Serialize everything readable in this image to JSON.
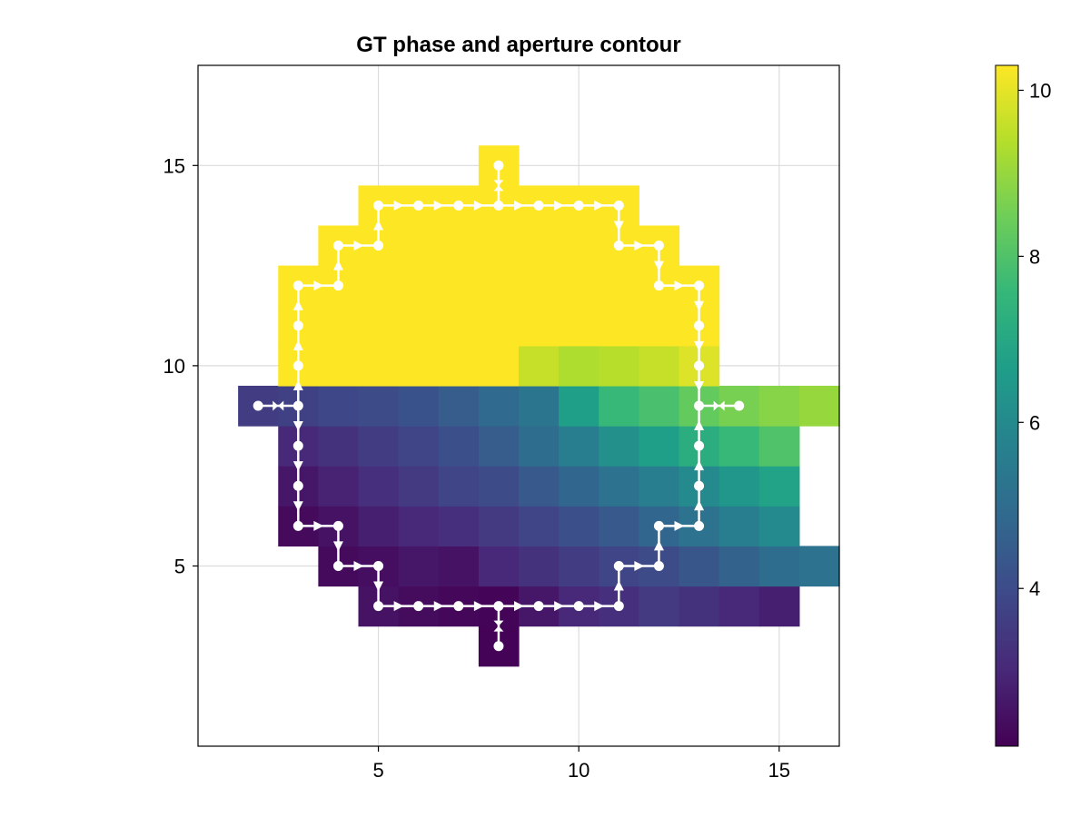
{
  "chart_data": {
    "type": "heatmap",
    "title": "GT phase and aperture contour",
    "xlabel": "",
    "ylabel": "",
    "xlim": [
      0.5,
      16.5
    ],
    "ylim": [
      0.5,
      17.5
    ],
    "xticks": [
      5,
      10,
      15
    ],
    "yticks": [
      5,
      10,
      15
    ],
    "grid": true,
    "colormap": "viridis",
    "colorbar": {
      "range": [
        2.1,
        10.3
      ],
      "ticks": [
        4,
        6,
        8,
        10
      ],
      "placement": "right"
    },
    "cells_by_row": [
      {
        "y": 3,
        "x_start": 8,
        "values": [
          2.15
        ]
      },
      {
        "y": 4,
        "x_start": 5,
        "values": [
          2.5,
          2.35,
          2.25,
          2.2,
          2.6,
          3.0,
          3.2,
          3.5,
          3.3,
          3.0,
          2.8
        ]
      },
      {
        "y": 5,
        "x_start": 4,
        "values": [
          2.3,
          2.4,
          2.6,
          2.5,
          3.0,
          3.3,
          3.6,
          3.8,
          4.0,
          4.3,
          4.7,
          5.0,
          5.2
        ]
      },
      {
        "y": 6,
        "x_start": 3,
        "values": [
          2.3,
          2.5,
          2.8,
          3.0,
          3.2,
          3.5,
          3.8,
          4.1,
          4.4,
          4.8,
          5.2,
          5.6,
          6.0
        ]
      },
      {
        "y": 7,
        "x_start": 3,
        "values": [
          2.6,
          2.9,
          3.2,
          3.5,
          3.8,
          4.0,
          4.4,
          4.8,
          5.2,
          5.6,
          6.0,
          6.4,
          6.8
        ]
      },
      {
        "y": 8,
        "x_start": 3,
        "values": [
          3.0,
          3.3,
          3.6,
          3.8,
          4.1,
          4.5,
          5.0,
          5.6,
          6.2,
          6.7,
          7.2,
          7.6,
          8.0
        ]
      },
      {
        "y": 9,
        "x_start": 2,
        "values": [
          3.6,
          3.7,
          3.9,
          4.0,
          4.2,
          4.5,
          4.9,
          5.3,
          6.7,
          7.6,
          7.9,
          8.3,
          8.6,
          8.8,
          9.0
        ]
      },
      {
        "y": 10,
        "x_start": 3,
        "values": [
          10.3,
          10.3,
          10.3,
          10.3,
          10.3,
          10.3,
          9.6,
          9.3,
          9.4,
          9.6,
          9.9
        ]
      },
      {
        "y": 11,
        "x_start": 3,
        "values": [
          10.3,
          10.3,
          10.3,
          10.3,
          10.3,
          10.3,
          10.3,
          10.3,
          10.3,
          10.3,
          10.3
        ]
      },
      {
        "y": 12,
        "x_start": 3,
        "values": [
          10.3,
          10.3,
          10.3,
          10.3,
          10.3,
          10.3,
          10.3,
          10.3,
          10.3,
          10.3,
          10.3
        ]
      },
      {
        "y": 13,
        "x_start": 4,
        "values": [
          10.3,
          10.3,
          10.3,
          10.3,
          10.3,
          10.3,
          10.3,
          10.3,
          10.3
        ]
      },
      {
        "y": 14,
        "x_start": 5,
        "values": [
          10.3,
          10.3,
          10.3,
          10.3,
          10.3,
          10.3,
          10.3
        ]
      },
      {
        "y": 15,
        "x_start": 8,
        "values": [
          10.3
        ]
      }
    ],
    "contour_upper": [
      [
        3,
        9
      ],
      [
        3,
        10
      ],
      [
        3,
        11
      ],
      [
        3,
        12
      ],
      [
        4,
        12
      ],
      [
        4,
        13
      ],
      [
        5,
        13
      ],
      [
        5,
        14
      ],
      [
        6,
        14
      ],
      [
        7,
        14
      ],
      [
        8,
        14
      ],
      [
        9,
        14
      ],
      [
        10,
        14
      ],
      [
        11,
        14
      ],
      [
        11,
        13
      ],
      [
        12,
        13
      ],
      [
        12,
        12
      ],
      [
        13,
        12
      ],
      [
        13,
        11
      ],
      [
        13,
        10
      ],
      [
        13,
        9
      ]
    ],
    "contour_lower": [
      [
        3,
        9
      ],
      [
        3,
        8
      ],
      [
        3,
        7
      ],
      [
        3,
        6
      ],
      [
        4,
        6
      ],
      [
        4,
        5
      ],
      [
        5,
        5
      ],
      [
        5,
        4
      ],
      [
        6,
        4
      ],
      [
        7,
        4
      ],
      [
        8,
        4
      ],
      [
        9,
        4
      ],
      [
        10,
        4
      ],
      [
        11,
        4
      ],
      [
        11,
        5
      ],
      [
        12,
        5
      ],
      [
        12,
        6
      ],
      [
        13,
        6
      ],
      [
        13,
        7
      ],
      [
        13,
        8
      ],
      [
        13,
        9
      ]
    ],
    "contour_spurs": [
      [
        [
          8,
          14
        ],
        [
          8,
          15
        ]
      ],
      [
        [
          8,
          4
        ],
        [
          8,
          3
        ]
      ],
      [
        [
          3,
          9
        ],
        [
          2,
          9
        ]
      ],
      [
        [
          13,
          9
        ],
        [
          14,
          9
        ]
      ]
    ]
  }
}
